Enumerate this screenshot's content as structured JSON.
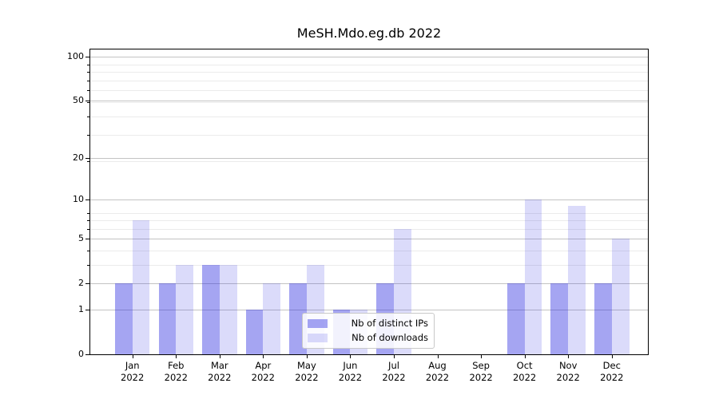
{
  "chart_data": {
    "type": "bar",
    "title": "MeSH.Mdo.eg.db 2022",
    "x_tick_year": "2022",
    "categories": [
      "Jan",
      "Feb",
      "Mar",
      "Apr",
      "May",
      "Jun",
      "Jul",
      "Aug",
      "Sep",
      "Oct",
      "Nov",
      "Dec"
    ],
    "series": [
      {
        "name": "Nb of distinct IPs",
        "key": "distinct-ips",
        "color": "#a5a5f2",
        "fill": "rgba(40,40,225,0.42)",
        "values": [
          2,
          2,
          3,
          1,
          2,
          1,
          2,
          0,
          0,
          2,
          2,
          2
        ]
      },
      {
        "name": "Nb of downloads",
        "key": "downloads",
        "color": "#dadaf9",
        "fill": "rgba(40,40,225,0.17)",
        "values": [
          7,
          3,
          3,
          2,
          3,
          1,
          6,
          0,
          0,
          10,
          9,
          5
        ]
      }
    ],
    "y_axis": {
      "scale": "log1p",
      "ticks": [
        0,
        1,
        2,
        5,
        10,
        20,
        50,
        100
      ],
      "minor_ticks": [
        3,
        4,
        6,
        7,
        8,
        19,
        29,
        39,
        49,
        59,
        69,
        79,
        89
      ],
      "lim": [
        0,
        112.2
      ]
    },
    "grid": {
      "major_color": "#c3c3c3",
      "minor_color": "#ebebeb"
    },
    "legend_position": "lower center",
    "background": "#ffffff"
  }
}
